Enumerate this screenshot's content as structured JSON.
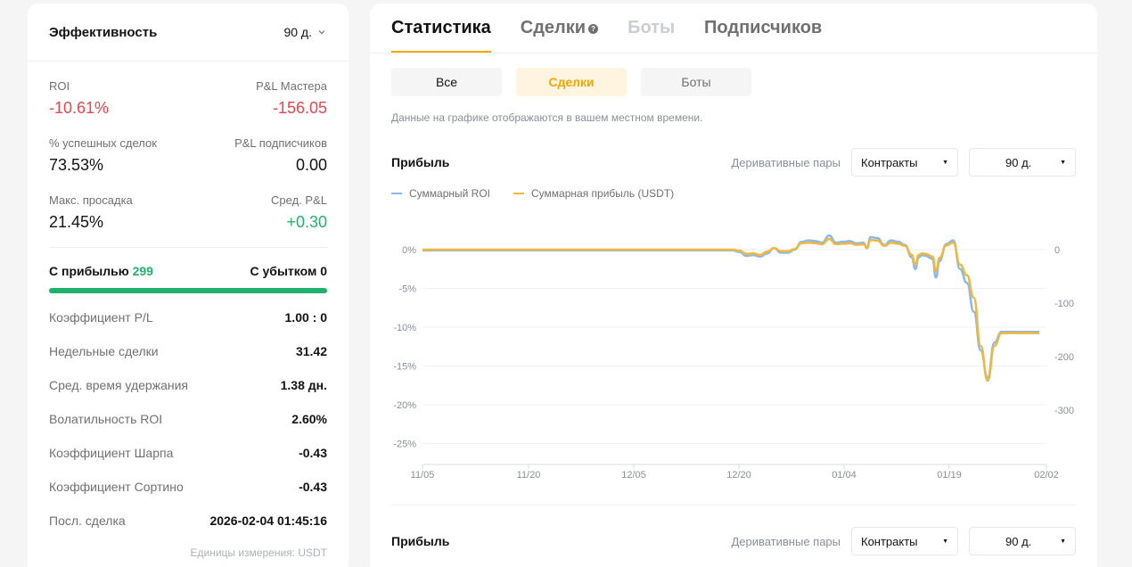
{
  "left": {
    "title": "Эффективность",
    "period": "90 д.",
    "metrics": [
      {
        "label": "ROI",
        "value": "-10.61%",
        "tone": "neg"
      },
      {
        "label": "P&L Мастера",
        "value": "-156.05",
        "tone": "neg"
      },
      {
        "label": "% успешных сделок",
        "value": "73.53%",
        "tone": ""
      },
      {
        "label": "P&L подписчиков",
        "value": "0.00",
        "tone": ""
      },
      {
        "label": "Макс. просадка",
        "value": "21.45%",
        "tone": ""
      },
      {
        "label": "Сред. P&L",
        "value": "+0.30",
        "tone": "pos"
      }
    ],
    "win_label": "С прибылью",
    "win_count": "299",
    "loss_label": "С убытком",
    "loss_count": "0",
    "win_fraction": 1.0,
    "stats": [
      {
        "label": "Коэффициент P/L",
        "value": "1.00 : 0"
      },
      {
        "label": "Недельные сделки",
        "value": "31.42"
      },
      {
        "label": "Сред. время удержания",
        "value": "1.38 дн."
      },
      {
        "label": "Волатильность ROI",
        "value": "2.60%"
      },
      {
        "label": "Коэффициент Шарпа",
        "value": "-0.43"
      },
      {
        "label": "Коэффициент Сортино",
        "value": "-0.43"
      },
      {
        "label": "Посл. сделка",
        "value": "2026-02-04 01:45:16"
      }
    ],
    "units": "Единицы измерения: USDT"
  },
  "right": {
    "tabs": [
      {
        "label": "Статистика",
        "state": "active"
      },
      {
        "label": "Сделки",
        "state": "normal",
        "help": "?"
      },
      {
        "label": "Боты",
        "state": "disabled"
      },
      {
        "label": "Подписчиков",
        "state": "normal"
      }
    ],
    "subtabs": [
      {
        "label": "Все",
        "state": "normal"
      },
      {
        "label": "Сделки",
        "state": "active"
      },
      {
        "label": "Боты",
        "state": "dim"
      }
    ],
    "note": "Данные на графике отображаются в вашем местном времени.",
    "chart_header": {
      "title": "Прибыль",
      "pairs_label": "Деривативные пары",
      "contracts": "Контракты",
      "period": "90 д."
    },
    "chart_header2": {
      "title": "Прибыль",
      "pairs_label": "Деривативные пары",
      "contracts": "Контракты",
      "period": "90 д."
    },
    "accent": "#f7a600"
  },
  "chart_data": {
    "type": "line",
    "legend": [
      "Суммарный ROI",
      "Суммарная прибыль (USDT)"
    ],
    "colors": {
      "roi": "#8ab8ea",
      "pnl": "#f0b83c"
    },
    "x_ticks": [
      "11/05",
      "11/20",
      "12/05",
      "12/20",
      "01/04",
      "01/19",
      "02/02"
    ],
    "y_left_ticks": [
      "0%",
      "-5%",
      "-10%",
      "-15%",
      "-20%",
      "-25%"
    ],
    "y_right_ticks": [
      "0",
      "-100",
      "-200",
      "-300"
    ],
    "ylim_left": [
      -25,
      0
    ],
    "ylim_right": [
      -300,
      0
    ],
    "x_days": [
      0,
      45,
      46,
      47,
      48,
      49,
      50,
      51,
      52,
      53,
      54,
      55,
      56,
      57,
      58,
      59,
      60,
      61,
      62,
      63,
      64,
      64.5,
      65,
      66,
      67,
      68,
      69,
      70,
      71,
      71.5,
      72,
      72.5,
      73,
      74,
      74.5,
      75,
      76,
      77,
      78,
      79,
      80,
      81,
      82,
      83,
      84,
      85,
      86,
      87,
      87.5,
      88,
      88.5,
      89,
      89.5
    ],
    "series": [
      {
        "name": "Суммарный ROI",
        "unit": "%",
        "values": [
          -0.1,
          -0.1,
          -0.3,
          -0.8,
          -0.7,
          -0.9,
          -0.5,
          0.2,
          -0.4,
          -0.4,
          0.0,
          1.0,
          1.2,
          1.1,
          0.9,
          1.8,
          0.9,
          1.0,
          1.1,
          0.8,
          0.9,
          0.2,
          1.6,
          1.5,
          0.6,
          1.2,
          1.0,
          0.6,
          -1.0,
          -2.5,
          -1.0,
          -0.7,
          -0.8,
          -1.2,
          -3.6,
          -1.5,
          0.7,
          1.2,
          -2.5,
          -4.3,
          -8.0,
          -13.0,
          -16.5,
          -12.0,
          -10.6,
          -10.6,
          -10.6,
          -10.6,
          -10.6,
          -10.6,
          -10.6,
          -10.6,
          -10.6
        ]
      },
      {
        "name": "Суммарная прибыль (USDT)",
        "unit": "USDT",
        "values": [
          0,
          0,
          -2,
          -8,
          -7,
          -10,
          -4,
          3,
          -3,
          -3,
          1,
          12,
          13,
          12,
          10,
          20,
          10,
          11,
          12,
          9,
          10,
          3,
          18,
          17,
          7,
          13,
          11,
          7,
          -10,
          -28,
          -10,
          -7,
          -8,
          -13,
          -40,
          -16,
          8,
          13,
          -28,
          -48,
          -90,
          -180,
          -245,
          -180,
          -156,
          -156,
          -156,
          -156,
          -156,
          -156,
          -156,
          -156,
          -156
        ]
      }
    ]
  }
}
